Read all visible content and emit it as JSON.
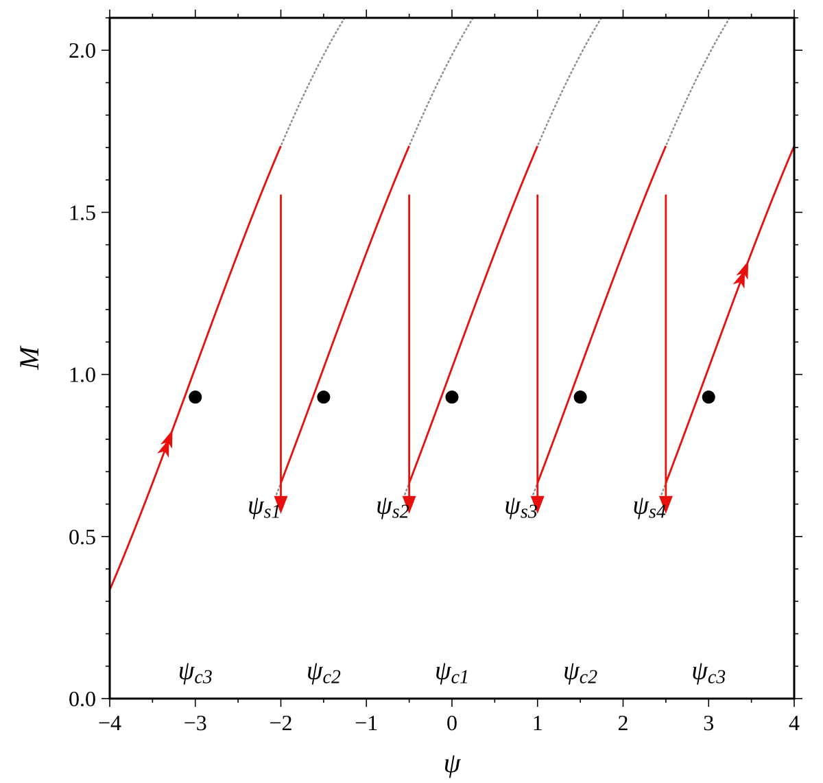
{
  "chart_data": {
    "type": "line",
    "title": "",
    "xlabel": "ψ",
    "ylabel": "M",
    "xlim": [
      -4,
      4
    ],
    "ylim": [
      0,
      2.1
    ],
    "x_ticks": [
      -4,
      -3,
      -2,
      -1,
      0,
      1,
      2,
      3,
      4
    ],
    "x_tick_labels": [
      "−4",
      "−3",
      "−2",
      "−1",
      "0",
      "1",
      "2",
      "3",
      "4"
    ],
    "y_ticks": [
      0,
      0.5,
      1.0,
      1.5,
      2.0
    ],
    "y_tick_labels": [
      "0.0",
      "0.5",
      "1.0",
      "1.5",
      "2.0"
    ],
    "grid": false,
    "colors": {
      "path": "#e8100d",
      "branches": "#909090",
      "points": "#000000",
      "frame": "#000000"
    },
    "branch_model": {
      "centers": [
        -3,
        -1.5,
        0,
        1.5,
        3
      ],
      "amplitude": 0.815,
      "offset": 1.02,
      "phase_scale": 1.57,
      "ascending_slope": 0.2,
      "x_min": -3.55,
      "x_max": 4.0
    },
    "dotted_branches": [
      {
        "x_from": -3.55,
        "x_to": -0.3
      },
      {
        "x_from": -2.05,
        "x_to": 1.35
      },
      {
        "x_from": -0.55,
        "x_to": 2.7
      },
      {
        "x_from": 0.95,
        "x_to": 4.0
      },
      {
        "x_from": 2.45,
        "x_to": 4.0
      }
    ],
    "red_path": [
      {
        "branch": 0,
        "x_from": -4.0,
        "x_to": -2.0
      },
      {
        "drop_at": -2.0,
        "from_y": 1.555,
        "to_y": 0.57
      },
      {
        "branch": 1,
        "x_from": -2.0,
        "x_to": -0.5
      },
      {
        "drop_at": -0.5,
        "from_y": 1.555,
        "to_y": 0.57
      },
      {
        "branch": 2,
        "x_from": -0.5,
        "x_to": 1.0
      },
      {
        "drop_at": 1.0,
        "from_y": 1.555,
        "to_y": 0.57
      },
      {
        "branch": 3,
        "x_from": 1.0,
        "x_to": 2.5
      },
      {
        "drop_at": 2.5,
        "from_y": 1.555,
        "to_y": 0.57
      },
      {
        "branch": 4,
        "x_from": 2.5,
        "x_to": 4.0
      }
    ],
    "path_arrows": [
      {
        "x": -3.3,
        "branch": 0
      },
      {
        "x": 3.43,
        "branch": 4
      }
    ],
    "points": [
      {
        "x": -3.0,
        "y": 0.93
      },
      {
        "x": -1.5,
        "y": 0.93
      },
      {
        "x": 0.0,
        "y": 0.93
      },
      {
        "x": 1.5,
        "y": 0.93
      },
      {
        "x": 3.0,
        "y": 0.93
      }
    ],
    "annotations": [
      {
        "base": "ψ",
        "sub": "s1",
        "x": -2.0,
        "y": 0.6
      },
      {
        "base": "ψ",
        "sub": "s2",
        "x": -0.5,
        "y": 0.6
      },
      {
        "base": "ψ",
        "sub": "s3",
        "x": 1.0,
        "y": 0.6
      },
      {
        "base": "ψ",
        "sub": "s4",
        "x": 2.5,
        "y": 0.6
      },
      {
        "base": "ψ",
        "sub": "c3",
        "x": -3.0,
        "y": 0.06
      },
      {
        "base": "ψ",
        "sub": "c2",
        "x": -1.5,
        "y": 0.06
      },
      {
        "base": "ψ",
        "sub": "c1",
        "x": 0.0,
        "y": 0.06
      },
      {
        "base": "ψ",
        "sub": "c2",
        "x": 1.5,
        "y": 0.06
      },
      {
        "base": "ψ",
        "sub": "c3",
        "x": 3.0,
        "y": 0.06
      }
    ]
  }
}
